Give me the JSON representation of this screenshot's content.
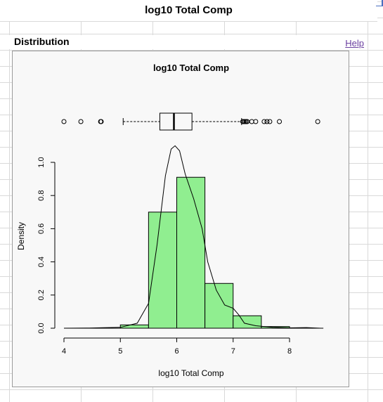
{
  "page": {
    "title": "log10 Total Comp"
  },
  "section": {
    "title": "Distribution",
    "help_label": "Help"
  },
  "colors": {
    "bar_fill": "#90ee90",
    "plot_background": "#f8f8f8",
    "link": "#6a3fa0"
  },
  "chart_data": {
    "type": "bar",
    "title": "log10 Total Comp",
    "xlabel": "log10 Total Comp",
    "ylabel": "Density",
    "xlim": [
      4.0,
      8.6
    ],
    "ylim": [
      0.0,
      1.1
    ],
    "x_ticks": [
      "4",
      "5",
      "6",
      "7",
      "8"
    ],
    "y_ticks": [
      "0.0",
      "0.2",
      "0.4",
      "0.6",
      "0.8",
      "1.0"
    ],
    "histogram_bins": [
      {
        "x0": 5.0,
        "x1": 5.5,
        "density": 0.02
      },
      {
        "x0": 5.5,
        "x1": 6.0,
        "density": 0.7
      },
      {
        "x0": 6.0,
        "x1": 6.5,
        "density": 0.91
      },
      {
        "x0": 6.5,
        "x1": 7.0,
        "density": 0.27
      },
      {
        "x0": 7.0,
        "x1": 7.5,
        "density": 0.075
      },
      {
        "x0": 7.5,
        "x1": 8.0,
        "density": 0.01
      }
    ],
    "density_curve": [
      [
        4.0,
        0.0
      ],
      [
        4.4,
        0.001
      ],
      [
        4.7,
        0.003
      ],
      [
        5.0,
        0.005
      ],
      [
        5.3,
        0.03
      ],
      [
        5.5,
        0.15
      ],
      [
        5.65,
        0.5
      ],
      [
        5.8,
        0.92
      ],
      [
        5.9,
        1.08
      ],
      [
        5.97,
        1.1
      ],
      [
        6.05,
        1.07
      ],
      [
        6.15,
        0.93
      ],
      [
        6.3,
        0.78
      ],
      [
        6.45,
        0.6
      ],
      [
        6.55,
        0.4
      ],
      [
        6.7,
        0.23
      ],
      [
        6.85,
        0.14
      ],
      [
        7.0,
        0.12
      ],
      [
        7.1,
        0.08
      ],
      [
        7.2,
        0.03
      ],
      [
        7.4,
        0.015
      ],
      [
        7.7,
        0.005
      ],
      [
        8.0,
        0.002
      ],
      [
        8.3,
        0.004
      ],
      [
        8.55,
        0.0
      ]
    ],
    "boxplot": {
      "whisker_low": 5.05,
      "q1": 5.7,
      "median": 5.95,
      "q3": 6.27,
      "whisker_high": 7.15,
      "outliers": [
        4.0,
        4.3,
        4.65,
        4.66,
        7.17,
        7.19,
        7.21,
        7.23,
        7.25,
        7.33,
        7.4,
        7.55,
        7.6,
        7.65,
        7.82,
        8.5
      ]
    }
  }
}
